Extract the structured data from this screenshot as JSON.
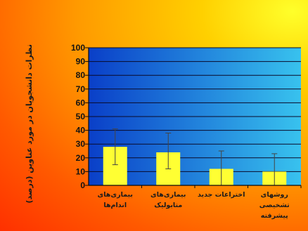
{
  "chart_data": {
    "type": "bar",
    "ylabel": "نظرات دانشجویان در مورد عناوین (درصد)",
    "xlabel": "",
    "title": "",
    "categories": [
      "بیماری‌های اندام‌ها",
      "بیماری‌های متابولیک",
      "اختراعات جدید",
      "روشهای تشخیصی پیشرفته"
    ],
    "values": [
      28,
      24,
      12,
      10
    ],
    "error_plus": [
      13,
      14,
      13,
      13
    ],
    "error_minus": [
      13,
      12,
      12,
      10
    ],
    "ylim": [
      0,
      100
    ],
    "yticks": [
      0,
      10,
      20,
      30,
      40,
      50,
      60,
      70,
      80,
      90,
      100
    ],
    "grid": true,
    "legend": "none",
    "colors": {
      "bar": "#ffff33",
      "plot_left": "#0a3fc8",
      "plot_right": "#38c2ee",
      "grid": "#0a0a2a",
      "axis": "#0a0a0a"
    }
  }
}
